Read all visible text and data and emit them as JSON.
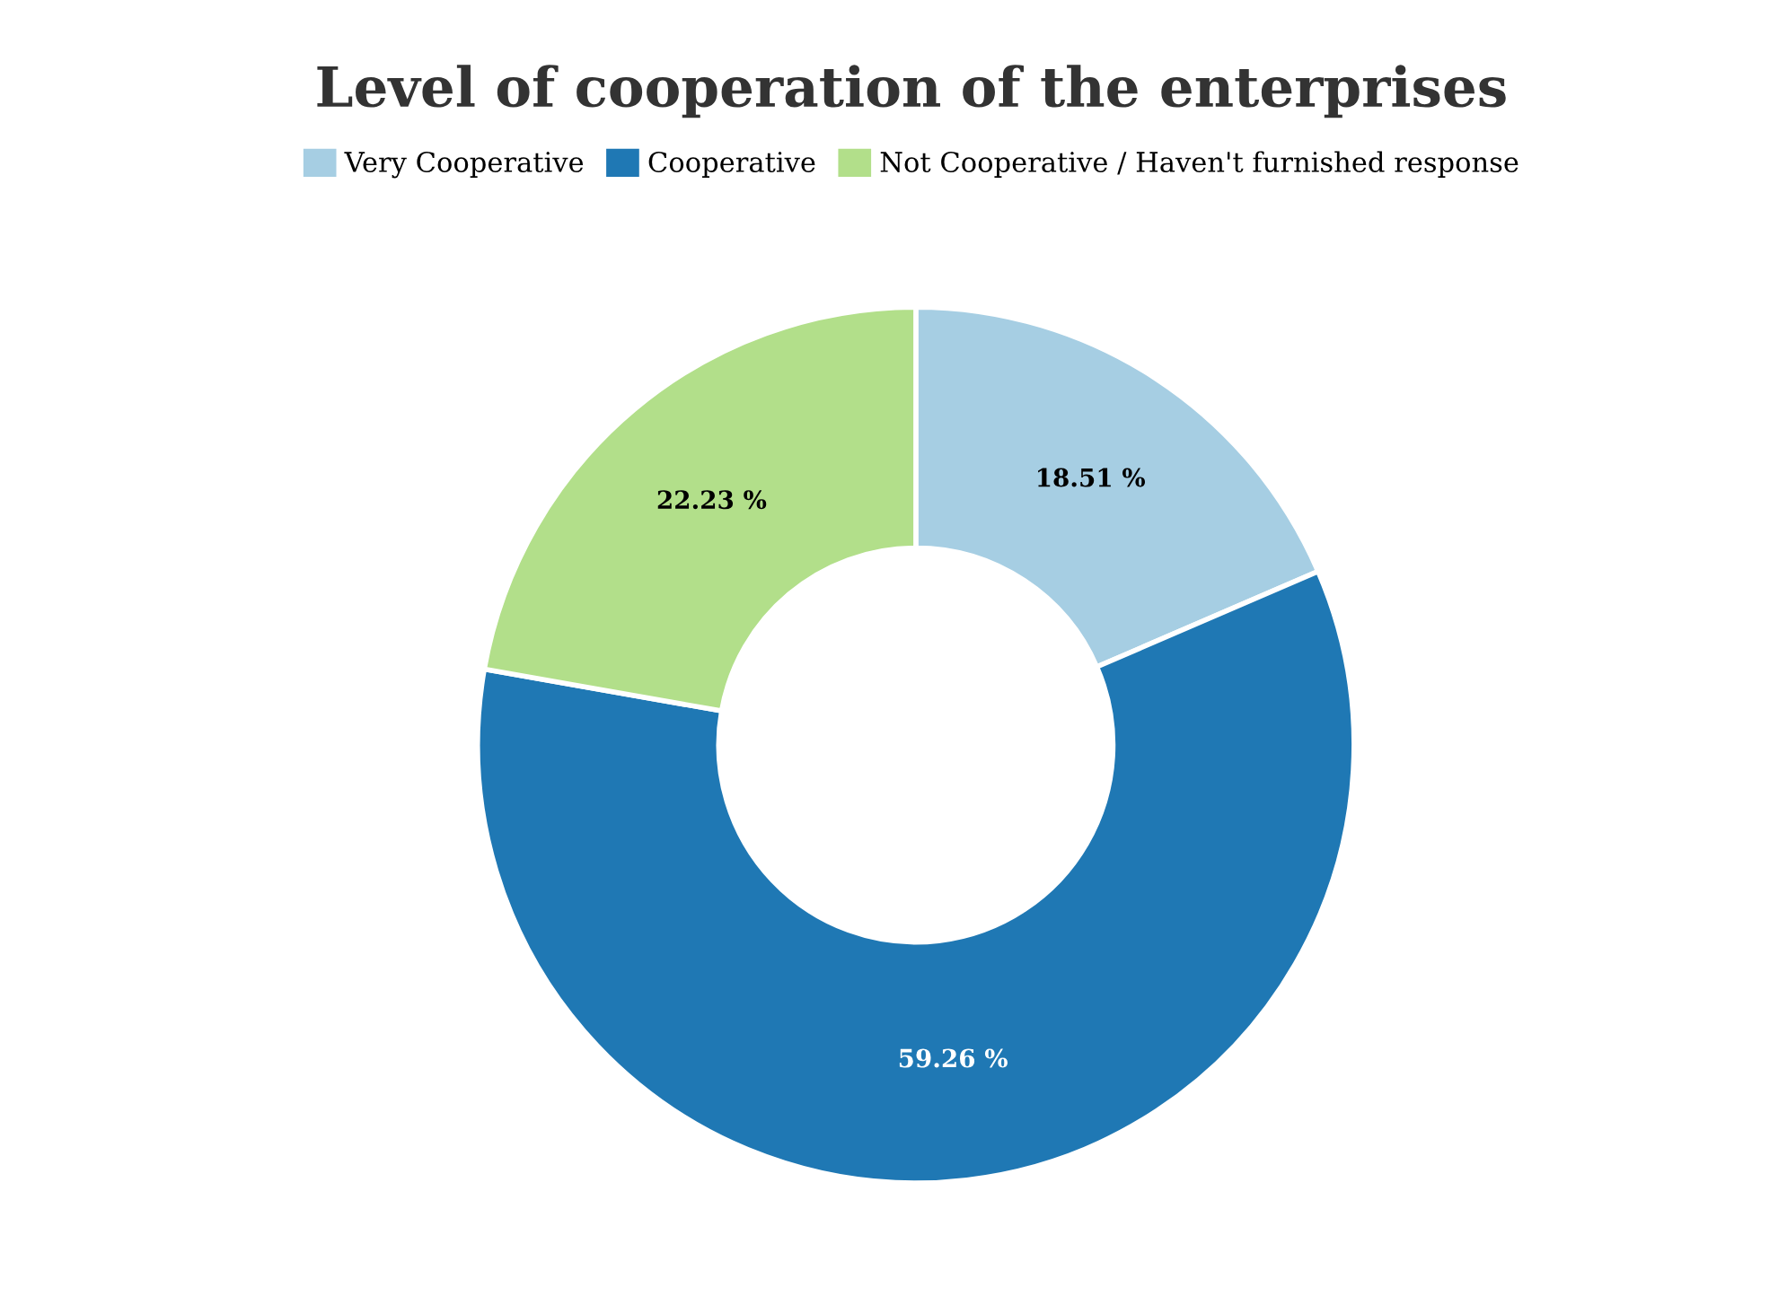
{
  "chart_data": {
    "type": "donut",
    "title": "Level of cooperation of the enterprises",
    "categories": [
      "Very Cooperative",
      "Cooperative",
      "Not Cooperative / Haven't furnished response"
    ],
    "values": [
      18.51,
      59.26,
      22.23
    ],
    "colors": [
      "#a6cee3",
      "#1f78b4",
      "#b2df8a"
    ],
    "value_labels": [
      "18.51 %",
      "59.26 %",
      "22.23 %"
    ],
    "legend": "top"
  }
}
